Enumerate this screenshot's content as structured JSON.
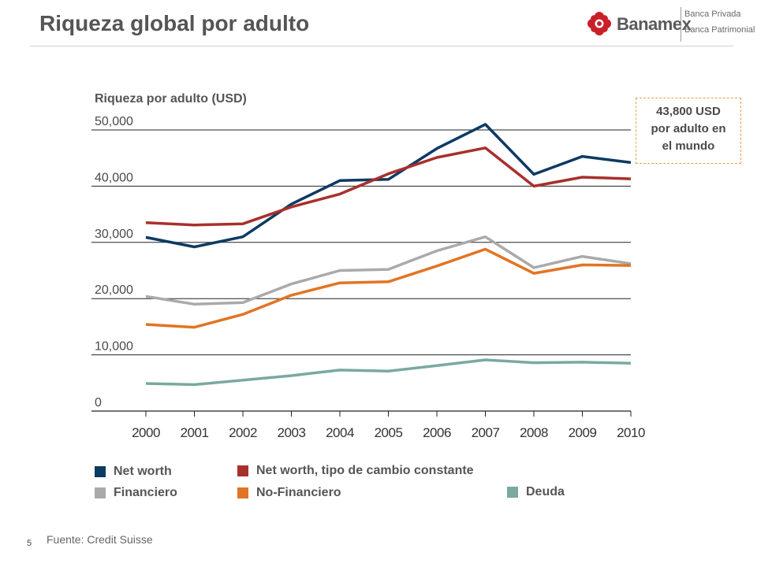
{
  "header": {
    "title": "Riqueza global por adulto",
    "logo_name": "Banamex",
    "logo_sub1": "Banca Privada",
    "logo_sub2": "Banca Patrimonial",
    "logo_icon": "banamex-flower-logo"
  },
  "callout": {
    "line1": "43,800 USD",
    "line2": "por adulto en",
    "line3": "el mundo",
    "border_color": "#e8a04a"
  },
  "chart_data": {
    "type": "line",
    "ylabel": "Riqueza por adulto (USD)",
    "xlabel": "",
    "ylim": [
      0,
      50000
    ],
    "y_ticks": [
      "0",
      "10,000",
      "20,000",
      "30,000",
      "40,000",
      "50,000"
    ],
    "categories": [
      "2000",
      "2001",
      "2002",
      "2003",
      "2004",
      "2005",
      "2006",
      "2007",
      "2008",
      "2009",
      "2010"
    ],
    "grid": true,
    "legend_position": "bottom",
    "series": [
      {
        "name": "Net worth",
        "color": "#0d3a63",
        "values": [
          30900,
          29200,
          31000,
          36800,
          41000,
          41200,
          46700,
          51000,
          42100,
          45300,
          44200
        ]
      },
      {
        "name": "Net worth, tipo de cambio constante",
        "color": "#a8302c",
        "values": [
          33500,
          33100,
          33300,
          36300,
          38600,
          42200,
          45100,
          46800,
          40000,
          41600,
          41300
        ]
      },
      {
        "name": "Financiero",
        "color": "#aaaaaa",
        "values": [
          20400,
          19000,
          19300,
          22600,
          25000,
          25200,
          28500,
          31000,
          25500,
          27500,
          26200
        ]
      },
      {
        "name": "No-Financiero",
        "color": "#e27424",
        "values": [
          15400,
          14900,
          17200,
          20600,
          22800,
          23000,
          25800,
          28800,
          24500,
          26000,
          25900
        ]
      },
      {
        "name": "Deuda",
        "color": "#7aa9a0",
        "values": [
          4900,
          4700,
          5500,
          6300,
          7300,
          7100,
          8100,
          9100,
          8600,
          8700,
          8500
        ]
      }
    ]
  },
  "footer": {
    "source": "Fuente: Credit Suisse",
    "page_number": "5"
  }
}
